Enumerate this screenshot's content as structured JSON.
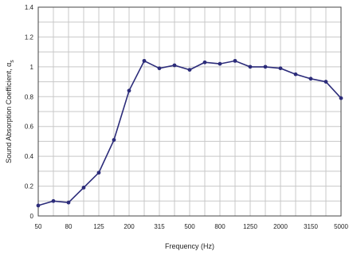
{
  "chart_data": {
    "type": "line",
    "title": "",
    "xlabel": "Frequency (Hz)",
    "ylabel": "Sound Absorption Coefficient, α",
    "ylabel_subscript": "s",
    "x_scale": "log (one-third octave bands)",
    "x": [
      50,
      63,
      80,
      100,
      125,
      160,
      200,
      250,
      315,
      400,
      500,
      630,
      800,
      1000,
      1250,
      1600,
      2000,
      2500,
      3150,
      4000,
      5000
    ],
    "x_tick_labels": [
      "50",
      "80",
      "125",
      "200",
      "315",
      "500",
      "800",
      "1250",
      "2000",
      "3150",
      "5000"
    ],
    "y_tick_labels": [
      "0",
      "0.2",
      "0.4",
      "0.6",
      "0.8",
      "1",
      "1.2",
      "1.4"
    ],
    "ylim": [
      0,
      1.4
    ],
    "grid": true,
    "legend": "none",
    "series": [
      {
        "color": "#2c2c7a",
        "marker": "dot",
        "values": [
          0.07,
          0.1,
          0.09,
          0.19,
          0.29,
          0.51,
          0.84,
          1.04,
          0.99,
          1.01,
          0.98,
          1.03,
          1.02,
          1.04,
          1.0,
          1.0,
          0.99,
          0.95,
          0.92,
          0.9,
          0.79
        ]
      }
    ],
    "colors": {
      "grid": "#c8c8c8",
      "axis": "#444444"
    }
  }
}
